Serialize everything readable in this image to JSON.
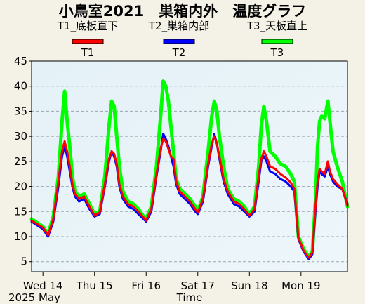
{
  "chart_data": {
    "type": "line",
    "title": "小鳥室2021　巣箱内外　温度グラフ",
    "legend": [
      {
        "id": "T1",
        "desc": "T1_底板直下",
        "label": "T1",
        "color": "#ff0000"
      },
      {
        "id": "T2",
        "desc": "T2_巣箱内部",
        "label": "T2",
        "color": "#0000ff"
      },
      {
        "id": "T3",
        "desc": "T3_天板直上",
        "label": "T3",
        "color": "#00ff00"
      }
    ],
    "xlabel": "Time",
    "x_year_label": "2025 May",
    "x_ticks": [
      {
        "label": "Wed 14",
        "day": 0
      },
      {
        "label": "Thu 15",
        "day": 1
      },
      {
        "label": "Fri 16",
        "day": 2
      },
      {
        "label": "Sat 17",
        "day": 3
      },
      {
        "label": "Sun 18",
        "day": 4
      },
      {
        "label": "Mon 19",
        "day": 5
      }
    ],
    "x_range_days": [
      -0.22,
      5.9
    ],
    "ylim": [
      3,
      45
    ],
    "y_ticks": [
      5,
      10,
      15,
      20,
      25,
      30,
      35,
      40,
      45
    ],
    "grid": "horizontal dashed",
    "series": [
      {
        "name": "T3",
        "color": "#00ff00",
        "points": [
          [
            -0.22,
            13.5
          ],
          [
            0.0,
            12.0
          ],
          [
            0.1,
            10.5
          ],
          [
            0.2,
            14.0
          ],
          [
            0.3,
            22.0
          ],
          [
            0.37,
            33.0
          ],
          [
            0.42,
            39.0
          ],
          [
            0.47,
            33.0
          ],
          [
            0.52,
            28.0
          ],
          [
            0.57,
            22.0
          ],
          [
            0.62,
            19.0
          ],
          [
            0.7,
            18.0
          ],
          [
            0.8,
            18.5
          ],
          [
            0.9,
            16.5
          ],
          [
            1.0,
            14.5
          ],
          [
            1.1,
            15.0
          ],
          [
            1.2,
            22.0
          ],
          [
            1.28,
            32.0
          ],
          [
            1.33,
            37.0
          ],
          [
            1.38,
            36.0
          ],
          [
            1.43,
            30.0
          ],
          [
            1.48,
            24.0
          ],
          [
            1.55,
            19.0
          ],
          [
            1.65,
            17.0
          ],
          [
            1.75,
            16.5
          ],
          [
            1.85,
            15.5
          ],
          [
            1.95,
            14.0
          ],
          [
            2.0,
            13.5
          ],
          [
            2.1,
            16.0
          ],
          [
            2.2,
            24.0
          ],
          [
            2.28,
            34.0
          ],
          [
            2.33,
            41.0
          ],
          [
            2.38,
            40.0
          ],
          [
            2.43,
            37.0
          ],
          [
            2.48,
            32.0
          ],
          [
            2.53,
            27.0
          ],
          [
            2.58,
            21.5
          ],
          [
            2.65,
            19.5
          ],
          [
            2.75,
            18.5
          ],
          [
            2.85,
            17.5
          ],
          [
            2.95,
            16.0
          ],
          [
            3.0,
            15.0
          ],
          [
            3.1,
            18.0
          ],
          [
            3.2,
            27.0
          ],
          [
            3.27,
            34.0
          ],
          [
            3.32,
            37.0
          ],
          [
            3.37,
            35.0
          ],
          [
            3.42,
            30.0
          ],
          [
            3.5,
            24.0
          ],
          [
            3.58,
            19.5
          ],
          [
            3.7,
            17.5
          ],
          [
            3.8,
            17.0
          ],
          [
            3.9,
            16.0
          ],
          [
            4.0,
            14.5
          ],
          [
            4.1,
            16.0
          ],
          [
            4.18,
            24.0
          ],
          [
            4.23,
            32.0
          ],
          [
            4.28,
            36.0
          ],
          [
            4.33,
            33.0
          ],
          [
            4.4,
            27.0
          ],
          [
            4.5,
            26.0
          ],
          [
            4.6,
            24.5
          ],
          [
            4.7,
            24.0
          ],
          [
            4.8,
            22.5
          ],
          [
            4.87,
            21.0
          ],
          [
            4.95,
            10.0
          ],
          [
            5.05,
            7.5
          ],
          [
            5.15,
            6.0
          ],
          [
            5.22,
            7.0
          ],
          [
            5.28,
            17.0
          ],
          [
            5.32,
            28.0
          ],
          [
            5.36,
            33.0
          ],
          [
            5.4,
            34.0
          ],
          [
            5.46,
            33.5
          ],
          [
            5.52,
            37.0
          ],
          [
            5.56,
            33.0
          ],
          [
            5.62,
            27.0
          ],
          [
            5.7,
            24.0
          ],
          [
            5.8,
            21.0
          ],
          [
            5.9,
            16.0
          ]
        ]
      },
      {
        "name": "T2",
        "color": "#0000ff",
        "points": [
          [
            -0.22,
            13.0
          ],
          [
            0.0,
            11.5
          ],
          [
            0.1,
            10.0
          ],
          [
            0.2,
            13.0
          ],
          [
            0.3,
            20.0
          ],
          [
            0.37,
            26.0
          ],
          [
            0.42,
            28.0
          ],
          [
            0.47,
            26.0
          ],
          [
            0.52,
            23.0
          ],
          [
            0.57,
            20.0
          ],
          [
            0.62,
            18.0
          ],
          [
            0.7,
            17.0
          ],
          [
            0.8,
            17.5
          ],
          [
            0.9,
            15.5
          ],
          [
            1.0,
            14.0
          ],
          [
            1.1,
            14.5
          ],
          [
            1.2,
            20.0
          ],
          [
            1.28,
            25.0
          ],
          [
            1.33,
            27.0
          ],
          [
            1.38,
            26.0
          ],
          [
            1.43,
            24.0
          ],
          [
            1.48,
            20.0
          ],
          [
            1.55,
            17.5
          ],
          [
            1.65,
            16.0
          ],
          [
            1.75,
            15.5
          ],
          [
            1.85,
            14.5
          ],
          [
            1.95,
            13.5
          ],
          [
            2.0,
            13.0
          ],
          [
            2.1,
            15.0
          ],
          [
            2.2,
            22.0
          ],
          [
            2.28,
            27.0
          ],
          [
            2.33,
            30.5
          ],
          [
            2.38,
            29.5
          ],
          [
            2.43,
            28.0
          ],
          [
            2.48,
            26.0
          ],
          [
            2.53,
            24.0
          ],
          [
            2.58,
            20.5
          ],
          [
            2.65,
            18.5
          ],
          [
            2.75,
            17.5
          ],
          [
            2.85,
            16.5
          ],
          [
            2.95,
            15.0
          ],
          [
            3.0,
            14.5
          ],
          [
            3.1,
            17.0
          ],
          [
            3.2,
            24.0
          ],
          [
            3.27,
            28.0
          ],
          [
            3.32,
            30.5
          ],
          [
            3.37,
            28.5
          ],
          [
            3.42,
            25.5
          ],
          [
            3.5,
            21.0
          ],
          [
            3.58,
            18.5
          ],
          [
            3.7,
            16.5
          ],
          [
            3.8,
            16.0
          ],
          [
            3.9,
            15.0
          ],
          [
            4.0,
            14.0
          ],
          [
            4.1,
            15.0
          ],
          [
            4.18,
            21.0
          ],
          [
            4.23,
            25.0
          ],
          [
            4.28,
            26.0
          ],
          [
            4.33,
            25.0
          ],
          [
            4.4,
            23.0
          ],
          [
            4.5,
            22.5
          ],
          [
            4.6,
            21.5
          ],
          [
            4.7,
            21.0
          ],
          [
            4.8,
            20.0
          ],
          [
            4.87,
            19.0
          ],
          [
            4.95,
            9.5
          ],
          [
            5.05,
            7.0
          ],
          [
            5.15,
            5.5
          ],
          [
            5.22,
            6.5
          ],
          [
            5.28,
            15.0
          ],
          [
            5.32,
            20.0
          ],
          [
            5.36,
            23.0
          ],
          [
            5.4,
            22.5
          ],
          [
            5.46,
            22.0
          ],
          [
            5.52,
            24.0
          ],
          [
            5.56,
            22.5
          ],
          [
            5.62,
            21.0
          ],
          [
            5.7,
            20.0
          ],
          [
            5.8,
            19.5
          ],
          [
            5.9,
            16.5
          ]
        ]
      },
      {
        "name": "T1",
        "color": "#ff0000",
        "points": [
          [
            -0.22,
            13.2
          ],
          [
            0.0,
            11.8
          ],
          [
            0.1,
            10.3
          ],
          [
            0.2,
            13.5
          ],
          [
            0.3,
            21.0
          ],
          [
            0.37,
            27.0
          ],
          [
            0.42,
            29.0
          ],
          [
            0.47,
            27.0
          ],
          [
            0.52,
            24.0
          ],
          [
            0.57,
            20.5
          ],
          [
            0.62,
            18.5
          ],
          [
            0.7,
            17.5
          ],
          [
            0.8,
            18.0
          ],
          [
            0.9,
            16.0
          ],
          [
            1.0,
            14.2
          ],
          [
            1.1,
            14.8
          ],
          [
            1.2,
            20.5
          ],
          [
            1.28,
            25.5
          ],
          [
            1.33,
            27.0
          ],
          [
            1.38,
            26.5
          ],
          [
            1.43,
            24.5
          ],
          [
            1.48,
            20.5
          ],
          [
            1.55,
            18.0
          ],
          [
            1.65,
            16.5
          ],
          [
            1.75,
            16.0
          ],
          [
            1.85,
            15.0
          ],
          [
            1.95,
            13.8
          ],
          [
            2.0,
            13.2
          ],
          [
            2.1,
            15.5
          ],
          [
            2.2,
            22.5
          ],
          [
            2.28,
            27.5
          ],
          [
            2.33,
            29.5
          ],
          [
            2.38,
            29.0
          ],
          [
            2.43,
            27.5
          ],
          [
            2.48,
            26.0
          ],
          [
            2.53,
            25.5
          ],
          [
            2.58,
            21.0
          ],
          [
            2.65,
            19.0
          ],
          [
            2.75,
            18.0
          ],
          [
            2.85,
            17.0
          ],
          [
            2.95,
            15.5
          ],
          [
            3.0,
            14.8
          ],
          [
            3.1,
            17.5
          ],
          [
            3.2,
            24.5
          ],
          [
            3.27,
            28.5
          ],
          [
            3.32,
            30.0
          ],
          [
            3.37,
            28.5
          ],
          [
            3.42,
            26.0
          ],
          [
            3.5,
            21.5
          ],
          [
            3.58,
            19.0
          ],
          [
            3.7,
            17.0
          ],
          [
            3.8,
            16.5
          ],
          [
            3.9,
            15.5
          ],
          [
            4.0,
            14.2
          ],
          [
            4.1,
            15.5
          ],
          [
            4.18,
            22.0
          ],
          [
            4.23,
            25.5
          ],
          [
            4.28,
            27.0
          ],
          [
            4.33,
            26.0
          ],
          [
            4.4,
            24.0
          ],
          [
            4.5,
            23.5
          ],
          [
            4.6,
            22.5
          ],
          [
            4.7,
            21.8
          ],
          [
            4.8,
            20.8
          ],
          [
            4.87,
            19.5
          ],
          [
            4.95,
            9.8
          ],
          [
            5.05,
            7.2
          ],
          [
            5.15,
            5.8
          ],
          [
            5.22,
            6.8
          ],
          [
            5.28,
            16.0
          ],
          [
            5.32,
            21.0
          ],
          [
            5.36,
            23.5
          ],
          [
            5.4,
            23.0
          ],
          [
            5.46,
            22.5
          ],
          [
            5.52,
            25.0
          ],
          [
            5.56,
            23.0
          ],
          [
            5.62,
            21.5
          ],
          [
            5.7,
            20.5
          ],
          [
            5.8,
            19.5
          ],
          [
            5.9,
            16.2
          ]
        ]
      }
    ]
  }
}
